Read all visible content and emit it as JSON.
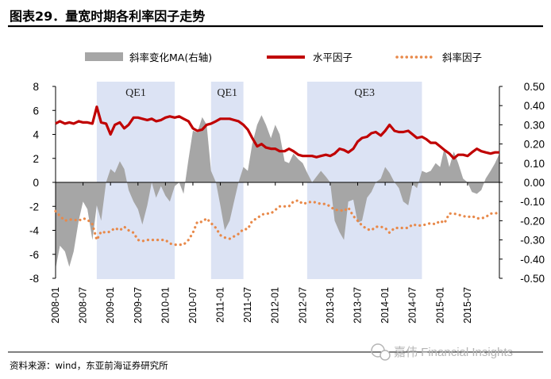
{
  "header": {
    "title": "图表29．量宽时期各利率因子走势"
  },
  "footer": {
    "source": "资料来源：wind，东亚前海证券研究所"
  },
  "watermark": {
    "text": "嘉伟 Financial Insights"
  },
  "colors": {
    "level": "#c00000",
    "slope": "#e8894a",
    "curve": "#a6a6a6",
    "band": "#dce3f4",
    "rule": "#000000"
  },
  "chart_data": {
    "type": "line",
    "title": "量宽时期各利率因子走势",
    "legend": [
      {
        "name": "斜率变化MA(右轴)",
        "style": "area",
        "color": "#a6a6a6"
      },
      {
        "name": "水平因子",
        "style": "solid",
        "color": "#c00000"
      },
      {
        "name": "斜率因子",
        "style": "dotted",
        "color": "#e8894a"
      }
    ],
    "legend_position": "top",
    "y_left": {
      "ylim": [
        -8,
        8
      ],
      "ticks": [
        -8,
        -6,
        -4,
        -2,
        0,
        2,
        4,
        6,
        8
      ],
      "labels": [
        "-8",
        "-6",
        "-4",
        "-2",
        "0",
        "2",
        "4",
        "6",
        "8"
      ]
    },
    "y_right": {
      "ylim": [
        -0.5,
        0.5
      ],
      "ticks": [
        -0.5,
        -0.4,
        -0.3,
        -0.2,
        -0.1,
        0,
        0.1,
        0.2,
        0.3,
        0.4,
        0.5
      ],
      "labels": [
        "-0.50",
        "-0.40",
        "-0.30",
        "-0.20",
        "-0.10",
        "0.00",
        "0.10",
        "0.20",
        "0.30",
        "0.40",
        "0.50"
      ]
    },
    "x_range": [
      2008.0,
      2016.08
    ],
    "x_ticks": [
      2008.0,
      2008.5,
      2009.0,
      2009.5,
      2010.0,
      2010.5,
      2011.0,
      2011.5,
      2012.0,
      2012.5,
      2013.0,
      2013.5,
      2014.0,
      2014.5,
      2015.0,
      2015.5
    ],
    "x_labels": [
      "2008-01",
      "2008-07",
      "2009-01",
      "2009-07",
      "2010-01",
      "2010-07",
      "2011-01",
      "2011-07",
      "2012-01",
      "2012-07",
      "2013-01",
      "2013-07",
      "2014-01",
      "2014-07",
      "2015-01",
      "2015-07"
    ],
    "bands": [
      {
        "label": "QE1",
        "start": 2008.75,
        "end": 2010.17
      },
      {
        "label": "QE1",
        "start": 2010.83,
        "end": 2011.42
      },
      {
        "label": "QE3",
        "start": 2012.58,
        "end": 2014.67
      }
    ],
    "series": [
      {
        "name": "斜率变化MA(右轴)",
        "axis": "right",
        "type": "area",
        "x": [
          2008.0,
          2008.08,
          2008.17,
          2008.25,
          2008.33,
          2008.42,
          2008.5,
          2008.58,
          2008.67,
          2008.75,
          2008.83,
          2008.92,
          2009.0,
          2009.08,
          2009.17,
          2009.25,
          2009.33,
          2009.42,
          2009.5,
          2009.58,
          2009.67,
          2009.75,
          2009.83,
          2009.92,
          2010.0,
          2010.08,
          2010.17,
          2010.25,
          2010.33,
          2010.42,
          2010.5,
          2010.58,
          2010.67,
          2010.75,
          2010.83,
          2010.92,
          2011.0,
          2011.08,
          2011.17,
          2011.25,
          2011.33,
          2011.42,
          2011.5,
          2011.58,
          2011.67,
          2011.75,
          2011.83,
          2011.92,
          2012.0,
          2012.08,
          2012.17,
          2012.25,
          2012.33,
          2012.42,
          2012.5,
          2012.58,
          2012.67,
          2012.75,
          2012.83,
          2012.92,
          2013.0,
          2013.08,
          2013.17,
          2013.25,
          2013.33,
          2013.42,
          2013.5,
          2013.58,
          2013.67,
          2013.75,
          2013.83,
          2013.92,
          2014.0,
          2014.08,
          2014.17,
          2014.25,
          2014.33,
          2014.42,
          2014.5,
          2014.58,
          2014.67,
          2014.75,
          2014.83,
          2014.92,
          2015.0,
          2015.08,
          2015.17,
          2015.25,
          2015.33,
          2015.42,
          2015.5,
          2015.58,
          2015.67,
          2015.75,
          2015.83,
          2015.92,
          2016.0,
          2016.08
        ],
        "values": [
          -0.45,
          -0.33,
          -0.36,
          -0.44,
          -0.36,
          -0.2,
          -0.1,
          -0.14,
          -0.3,
          -0.12,
          -0.2,
          0.0,
          0.07,
          0.05,
          0.11,
          0.07,
          -0.04,
          -0.1,
          -0.14,
          -0.22,
          -0.12,
          0.0,
          -0.08,
          -0.02,
          -0.07,
          -0.1,
          -0.02,
          0.0,
          -0.06,
          0.12,
          0.27,
          0.26,
          0.34,
          0.3,
          0.06,
          0.0,
          -0.12,
          -0.25,
          -0.2,
          -0.1,
          0.0,
          0.08,
          0.06,
          0.2,
          0.3,
          0.35,
          0.3,
          0.23,
          0.3,
          0.25,
          0.11,
          0.1,
          0.15,
          0.12,
          0.1,
          0.05,
          0.0,
          0.03,
          0.06,
          0.03,
          0.0,
          -0.2,
          -0.26,
          -0.3,
          -0.1,
          -0.09,
          -0.21,
          -0.2,
          -0.08,
          -0.05,
          0.0,
          0.02,
          0.08,
          0.05,
          0.0,
          -0.03,
          -0.1,
          -0.12,
          -0.01,
          -0.03,
          0.06,
          0.05,
          0.06,
          0.1,
          0.08,
          0.18,
          0.08,
          0.16,
          0.1,
          0.02,
          0.0,
          -0.05,
          -0.06,
          -0.04,
          0.02,
          0.06,
          0.1,
          0.15
        ]
      },
      {
        "name": "水平因子",
        "axis": "left",
        "type": "line",
        "x": [
          2008.0,
          2008.08,
          2008.17,
          2008.25,
          2008.33,
          2008.42,
          2008.5,
          2008.58,
          2008.67,
          2008.75,
          2008.83,
          2008.92,
          2009.0,
          2009.08,
          2009.17,
          2009.25,
          2009.33,
          2009.42,
          2009.5,
          2009.58,
          2009.67,
          2009.75,
          2009.83,
          2009.92,
          2010.0,
          2010.08,
          2010.17,
          2010.25,
          2010.33,
          2010.42,
          2010.5,
          2010.58,
          2010.67,
          2010.75,
          2010.83,
          2010.92,
          2011.0,
          2011.08,
          2011.17,
          2011.25,
          2011.33,
          2011.42,
          2011.5,
          2011.58,
          2011.67,
          2011.75,
          2011.83,
          2011.92,
          2012.0,
          2012.08,
          2012.17,
          2012.25,
          2012.33,
          2012.42,
          2012.5,
          2012.58,
          2012.67,
          2012.75,
          2012.83,
          2012.92,
          2013.0,
          2013.08,
          2013.17,
          2013.25,
          2013.33,
          2013.42,
          2013.5,
          2013.58,
          2013.67,
          2013.75,
          2013.83,
          2013.92,
          2014.0,
          2014.08,
          2014.17,
          2014.25,
          2014.33,
          2014.42,
          2014.5,
          2014.58,
          2014.67,
          2014.75,
          2014.83,
          2014.92,
          2015.0,
          2015.08,
          2015.17,
          2015.25,
          2015.33,
          2015.42,
          2015.5,
          2015.58,
          2015.67,
          2015.75,
          2015.83,
          2015.92,
          2016.0,
          2016.08
        ],
        "values": [
          4.9,
          5.1,
          4.9,
          5.0,
          4.9,
          5.1,
          5.0,
          5.0,
          4.9,
          6.3,
          5.0,
          4.9,
          4.0,
          4.8,
          5.0,
          4.5,
          4.8,
          5.4,
          5.4,
          5.3,
          5.2,
          5.3,
          5.1,
          5.2,
          5.4,
          5.5,
          5.4,
          5.5,
          5.3,
          5.1,
          4.5,
          4.3,
          4.4,
          4.8,
          4.9,
          5.1,
          5.3,
          5.3,
          5.3,
          5.2,
          5.1,
          4.8,
          4.4,
          3.7,
          3.0,
          3.2,
          2.9,
          2.8,
          2.8,
          2.6,
          2.6,
          2.8,
          2.6,
          2.3,
          2.2,
          2.2,
          2.2,
          2.1,
          2.2,
          2.3,
          2.2,
          2.4,
          2.8,
          2.7,
          2.5,
          2.8,
          3.4,
          3.7,
          3.8,
          4.1,
          4.2,
          3.9,
          4.3,
          4.8,
          4.3,
          4.2,
          4.2,
          4.3,
          4.0,
          3.7,
          3.8,
          3.6,
          3.3,
          3.3,
          3.0,
          2.7,
          2.4,
          2.0,
          2.3,
          2.3,
          2.2,
          2.5,
          2.8,
          2.6,
          2.5,
          2.4,
          2.5,
          2.5
        ]
      },
      {
        "name": "斜率因子",
        "axis": "left",
        "type": "dotted",
        "x": [
          2008.0,
          2008.08,
          2008.17,
          2008.25,
          2008.33,
          2008.42,
          2008.5,
          2008.58,
          2008.67,
          2008.75,
          2008.83,
          2008.92,
          2009.0,
          2009.08,
          2009.17,
          2009.25,
          2009.33,
          2009.42,
          2009.5,
          2009.58,
          2009.67,
          2009.75,
          2009.83,
          2009.92,
          2010.0,
          2010.08,
          2010.17,
          2010.25,
          2010.33,
          2010.42,
          2010.5,
          2010.58,
          2010.67,
          2010.75,
          2010.83,
          2010.92,
          2011.0,
          2011.08,
          2011.17,
          2011.25,
          2011.33,
          2011.42,
          2011.5,
          2011.58,
          2011.67,
          2011.75,
          2011.83,
          2011.92,
          2012.0,
          2012.08,
          2012.17,
          2012.25,
          2012.33,
          2012.42,
          2012.5,
          2012.58,
          2012.67,
          2012.75,
          2012.83,
          2012.92,
          2013.0,
          2013.08,
          2013.17,
          2013.25,
          2013.33,
          2013.42,
          2013.5,
          2013.58,
          2013.67,
          2013.75,
          2013.83,
          2013.92,
          2014.0,
          2014.08,
          2014.17,
          2014.25,
          2014.33,
          2014.42,
          2014.5,
          2014.58,
          2014.67,
          2014.75,
          2014.83,
          2014.92,
          2015.0,
          2015.08,
          2015.17,
          2015.25,
          2015.33,
          2015.42,
          2015.5,
          2015.58,
          2015.67,
          2015.75,
          2015.83,
          2015.92,
          2016.0,
          2016.08
        ],
        "values": [
          -2.4,
          -2.8,
          -3.2,
          -3.1,
          -3.1,
          -3.2,
          -3.0,
          -3.1,
          -3.5,
          -4.8,
          -4.1,
          -4.2,
          -4.1,
          -3.8,
          -4.0,
          -3.7,
          -4.0,
          -4.2,
          -4.8,
          -4.9,
          -4.8,
          -4.8,
          -4.8,
          -4.8,
          -4.8,
          -5.1,
          -5.2,
          -5.2,
          -5.2,
          -4.8,
          -4.2,
          -3.3,
          -3.3,
          -3.0,
          -3.4,
          -3.8,
          -4.4,
          -4.6,
          -4.7,
          -4.5,
          -4.3,
          -3.9,
          -3.9,
          -3.2,
          -3.0,
          -2.7,
          -2.6,
          -2.6,
          -2.3,
          -2.0,
          -2.0,
          -2.0,
          -1.6,
          -1.5,
          -1.8,
          -1.7,
          -1.6,
          -1.7,
          -1.8,
          -1.8,
          -2.0,
          -2.3,
          -2.3,
          -2.4,
          -2.1,
          -2.8,
          -3.2,
          -3.6,
          -3.9,
          -4.0,
          -3.7,
          -3.7,
          -3.8,
          -4.2,
          -3.8,
          -3.8,
          -3.8,
          -3.8,
          -3.5,
          -3.6,
          -3.6,
          -3.5,
          -3.4,
          -3.5,
          -3.2,
          -3.4,
          -2.6,
          -2.6,
          -2.7,
          -2.8,
          -2.9,
          -2.8,
          -3.0,
          -3.0,
          -2.9,
          -2.6,
          -2.6,
          -2.5
        ]
      }
    ]
  }
}
